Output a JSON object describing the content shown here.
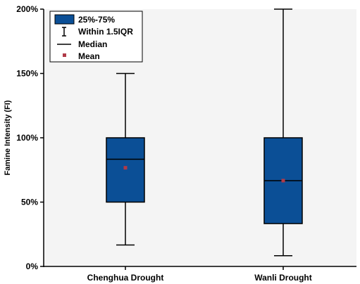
{
  "chart_data": {
    "type": "boxplot",
    "title": "",
    "xlabel": "",
    "ylabel": "Famine Intensity (FI)",
    "ylim": [
      0,
      200
    ],
    "y_ticks": [
      "0%",
      "50%",
      "100%",
      "150%",
      "200%"
    ],
    "y_tick_values": [
      0,
      50,
      100,
      150,
      200
    ],
    "categories": [
      "Chenghua Drought",
      "Wanli Drought"
    ],
    "boxes": [
      {
        "category": "Chenghua Drought",
        "whisker_low": 16.7,
        "q1": 50,
        "median": 83.3,
        "q3": 100,
        "whisker_high": 150,
        "mean": 76.7
      },
      {
        "category": "Wanli Drought",
        "whisker_low": 8.3,
        "q1": 33.3,
        "median": 66.7,
        "q3": 100,
        "whisker_high": 200,
        "mean": 66.7
      }
    ],
    "legend": {
      "position": "top-left",
      "entries": [
        "25%-75%",
        "Within 1.5IQR",
        "Median",
        "Mean"
      ]
    },
    "colors": {
      "box_fill": "#0b4f96",
      "box_stroke": "#000000",
      "mean_marker": "#b03a48"
    },
    "grid": false
  }
}
